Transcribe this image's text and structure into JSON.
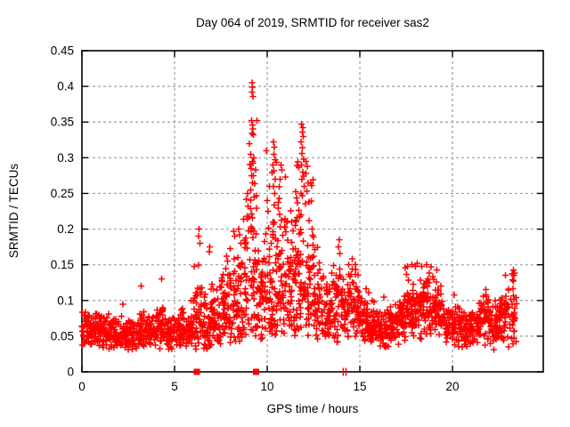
{
  "window": {
    "background": "#ffffff",
    "foreground": "#000000"
  },
  "chart_data": {
    "type": "scatter",
    "title": "Day 064 of 2019, SRMTID for receiver sas2",
    "xlabel": "GPS time / hours",
    "ylabel": "SRMTID / TECUs",
    "xlim": [
      0,
      24.9
    ],
    "ylim": [
      0,
      0.45
    ],
    "xticks": [
      0,
      5,
      10,
      15,
      20
    ],
    "xtick_labels": [
      "0",
      "5",
      "10",
      "15",
      "20"
    ],
    "yticks": [
      0,
      0.05,
      0.1,
      0.15,
      0.2,
      0.25,
      0.3,
      0.35,
      0.4,
      0.45
    ],
    "ytick_labels": [
      "0",
      "0.05",
      "0.1",
      "0.15",
      "0.2",
      "0.25",
      "0.3",
      "0.35",
      "0.4",
      "0.45"
    ],
    "grid": true,
    "grid_style": "dashed",
    "grid_color": "#9e9e9e",
    "legend": "none",
    "marker": {
      "shape": "plus",
      "color": "#ff0000",
      "size": 8
    },
    "seed": 1064,
    "cloud_bins": [
      [
        0.0,
        0.5,
        46,
        0.03,
        0.09,
        1
      ],
      [
        0.5,
        1.0,
        46,
        0.03,
        0.09,
        1
      ],
      [
        1.0,
        1.5,
        44,
        0.03,
        0.085,
        1
      ],
      [
        1.5,
        2.0,
        42,
        0.028,
        0.08,
        1
      ],
      [
        2.0,
        2.5,
        42,
        0.028,
        0.08,
        1
      ],
      [
        2.5,
        3.0,
        40,
        0.025,
        0.075,
        1
      ],
      [
        3.0,
        3.5,
        42,
        0.03,
        0.085,
        1
      ],
      [
        3.5,
        4.0,
        42,
        0.028,
        0.08,
        1
      ],
      [
        4.0,
        4.5,
        44,
        0.03,
        0.1,
        1.1
      ],
      [
        4.5,
        5.0,
        42,
        0.03,
        0.085,
        1
      ],
      [
        5.0,
        5.5,
        42,
        0.028,
        0.09,
        1
      ],
      [
        5.5,
        6.0,
        42,
        0.025,
        0.085,
        1
      ],
      [
        6.0,
        6.5,
        46,
        0.03,
        0.17,
        1.5
      ],
      [
        6.5,
        7.0,
        44,
        0.03,
        0.13,
        1.3
      ],
      [
        7.0,
        7.5,
        44,
        0.035,
        0.13,
        1.2
      ],
      [
        7.5,
        8.0,
        46,
        0.04,
        0.16,
        1.3
      ],
      [
        8.0,
        8.5,
        48,
        0.04,
        0.2,
        1.5
      ],
      [
        8.5,
        9.0,
        50,
        0.045,
        0.27,
        1.7
      ],
      [
        9.0,
        9.5,
        58,
        0.05,
        0.41,
        1.9
      ],
      [
        9.5,
        10.0,
        50,
        0.045,
        0.24,
        1.7
      ],
      [
        10.0,
        10.5,
        54,
        0.05,
        0.32,
        1.7
      ],
      [
        10.5,
        11.0,
        54,
        0.05,
        0.3,
        1.6
      ],
      [
        11.0,
        11.5,
        50,
        0.05,
        0.26,
        1.6
      ],
      [
        11.5,
        12.0,
        58,
        0.05,
        0.35,
        1.7
      ],
      [
        12.0,
        12.5,
        52,
        0.05,
        0.3,
        1.7
      ],
      [
        12.5,
        13.0,
        46,
        0.045,
        0.18,
        1.4
      ],
      [
        13.0,
        13.5,
        44,
        0.04,
        0.15,
        1.3
      ],
      [
        13.5,
        14.0,
        44,
        0.04,
        0.18,
        1.4
      ],
      [
        14.0,
        14.5,
        44,
        0.04,
        0.16,
        1.3
      ],
      [
        14.5,
        15.0,
        46,
        0.04,
        0.16,
        1.3
      ],
      [
        15.0,
        15.5,
        44,
        0.035,
        0.12,
        1.2
      ],
      [
        15.5,
        16.0,
        42,
        0.03,
        0.1,
        1.1
      ],
      [
        16.0,
        16.5,
        42,
        0.03,
        0.09,
        1
      ],
      [
        16.5,
        17.0,
        42,
        0.03,
        0.1,
        1
      ],
      [
        17.0,
        17.5,
        44,
        0.035,
        0.13,
        1.2
      ],
      [
        17.5,
        18.0,
        46,
        0.04,
        0.15,
        1.2
      ],
      [
        18.0,
        18.5,
        46,
        0.04,
        0.15,
        1.2
      ],
      [
        18.5,
        19.0,
        46,
        0.04,
        0.15,
        1.2
      ],
      [
        19.0,
        19.5,
        44,
        0.04,
        0.14,
        1.2
      ],
      [
        19.5,
        20.0,
        42,
        0.035,
        0.11,
        1.1
      ],
      [
        20.0,
        20.5,
        42,
        0.03,
        0.1,
        1
      ],
      [
        20.5,
        21.0,
        42,
        0.03,
        0.09,
        1
      ],
      [
        21.0,
        21.5,
        42,
        0.03,
        0.1,
        1
      ],
      [
        21.5,
        22.0,
        42,
        0.035,
        0.11,
        1
      ],
      [
        22.0,
        22.5,
        42,
        0.03,
        0.1,
        1
      ],
      [
        22.5,
        23.0,
        44,
        0.035,
        0.12,
        1.1
      ],
      [
        23.0,
        23.45,
        36,
        0.035,
        0.145,
        1.3
      ]
    ],
    "peak_points": [
      [
        9.17,
        0.405
      ],
      [
        9.21,
        0.399
      ],
      [
        9.19,
        0.392
      ],
      [
        9.23,
        0.386
      ],
      [
        9.15,
        0.352
      ],
      [
        9.2,
        0.346
      ],
      [
        9.24,
        0.34
      ],
      [
        9.18,
        0.334
      ],
      [
        9.1,
        0.305
      ],
      [
        9.28,
        0.3
      ],
      [
        9.2,
        0.295
      ],
      [
        9.14,
        0.285
      ],
      [
        9.25,
        0.275
      ],
      [
        9.2,
        0.265
      ],
      [
        9.12,
        0.255
      ],
      [
        9.3,
        0.245
      ],
      [
        8.93,
        0.25
      ],
      [
        8.88,
        0.242
      ],
      [
        8.97,
        0.232
      ],
      [
        10.33,
        0.322
      ],
      [
        10.38,
        0.315
      ],
      [
        10.35,
        0.305
      ],
      [
        10.42,
        0.297
      ],
      [
        10.3,
        0.29
      ],
      [
        10.37,
        0.282
      ],
      [
        10.44,
        0.27
      ],
      [
        10.33,
        0.26
      ],
      [
        10.4,
        0.25
      ],
      [
        10.75,
        0.29
      ],
      [
        10.8,
        0.283
      ],
      [
        10.7,
        0.27
      ],
      [
        11.86,
        0.347
      ],
      [
        11.92,
        0.342
      ],
      [
        11.89,
        0.336
      ],
      [
        11.95,
        0.33
      ],
      [
        11.83,
        0.322
      ],
      [
        11.9,
        0.314
      ],
      [
        11.87,
        0.306
      ],
      [
        11.97,
        0.298
      ],
      [
        11.85,
        0.29
      ],
      [
        11.93,
        0.28
      ],
      [
        11.88,
        0.27
      ],
      [
        12.0,
        0.26
      ],
      [
        11.82,
        0.25
      ],
      [
        12.1,
        0.295
      ],
      [
        12.15,
        0.288
      ],
      [
        12.08,
        0.278
      ],
      [
        12.2,
        0.265
      ],
      [
        9.95,
        0.31
      ],
      [
        10.0,
        0.24
      ],
      [
        10.05,
        0.225
      ],
      [
        6.33,
        0.2
      ],
      [
        6.3,
        0.19
      ],
      [
        6.38,
        0.18
      ],
      [
        6.9,
        0.175
      ],
      [
        6.87,
        0.168
      ],
      [
        8.2,
        0.197
      ],
      [
        8.24,
        0.19
      ],
      [
        8.45,
        0.2
      ],
      [
        8.5,
        0.192
      ],
      [
        7.8,
        0.162
      ],
      [
        7.85,
        0.155
      ],
      [
        13.9,
        0.185
      ],
      [
        13.85,
        0.175
      ],
      [
        14.6,
        0.158
      ],
      [
        14.75,
        0.15
      ],
      [
        17.45,
        0.146
      ],
      [
        17.8,
        0.15
      ],
      [
        18.1,
        0.152
      ],
      [
        18.35,
        0.148
      ],
      [
        18.6,
        0.15
      ],
      [
        18.85,
        0.147
      ],
      [
        19.15,
        0.143
      ],
      [
        22.85,
        0.135
      ],
      [
        23.3,
        0.143
      ],
      [
        23.32,
        0.135
      ],
      [
        23.28,
        0.127
      ],
      [
        3.2,
        0.12
      ],
      [
        4.3,
        0.13
      ],
      [
        2.2,
        0.095
      ],
      [
        5.9,
        0.1
      ],
      [
        16.3,
        0.105
      ],
      [
        21.8,
        0.115
      ],
      [
        20.1,
        0.108
      ]
    ],
    "flag_squares": [
      [
        6.2,
        0
      ],
      [
        9.4,
        0
      ]
    ],
    "flag_bars": [
      [
        14.1,
        0
      ],
      [
        14.25,
        0
      ]
    ]
  }
}
